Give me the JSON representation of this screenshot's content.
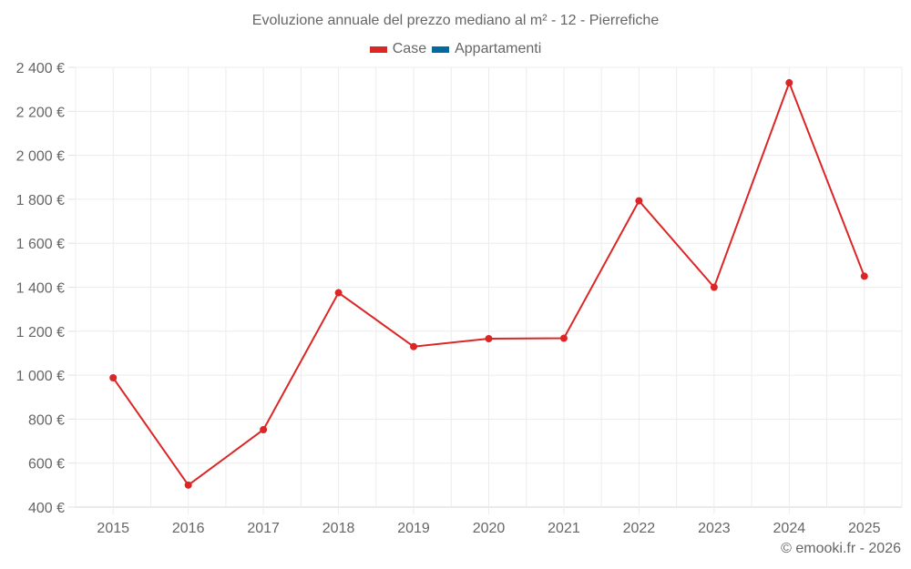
{
  "title": "Evoluzione annuale del prezzo mediano al m² - 12 - Pierrefiche",
  "legend": [
    {
      "label": "Case",
      "color": "#dc2626"
    },
    {
      "label": "Appartamenti",
      "color": "#0369a1"
    }
  ],
  "credit": "© emooki.fr - 2026",
  "chart_data": {
    "type": "line",
    "title": "Evoluzione annuale del prezzo mediano al m² - 12 - Pierrefiche",
    "xlabel": "",
    "ylabel": "",
    "categories": [
      "2015",
      "2016",
      "2017",
      "2018",
      "2019",
      "2020",
      "2021",
      "2022",
      "2023",
      "2024",
      "2025"
    ],
    "series": [
      {
        "name": "Case",
        "color": "#dc2626",
        "values": [
          988,
          500,
          752,
          1375,
          1130,
          1166,
          1168,
          1793,
          1400,
          2330,
          1450
        ]
      },
      {
        "name": "Appartamenti",
        "color": "#0369a1",
        "values": []
      }
    ],
    "ylim": [
      400,
      2400
    ],
    "yticks": [
      400,
      600,
      800,
      1000,
      1200,
      1400,
      1600,
      1800,
      2000,
      2200,
      2400
    ],
    "ytick_labels": [
      "400 €",
      "600 €",
      "800 €",
      "1 000 €",
      "1 200 €",
      "1 400 €",
      "1 600 €",
      "1 800 €",
      "2 000 €",
      "2 200 €",
      "2 400 €"
    ],
    "grid": true,
    "legend_position": "top"
  }
}
